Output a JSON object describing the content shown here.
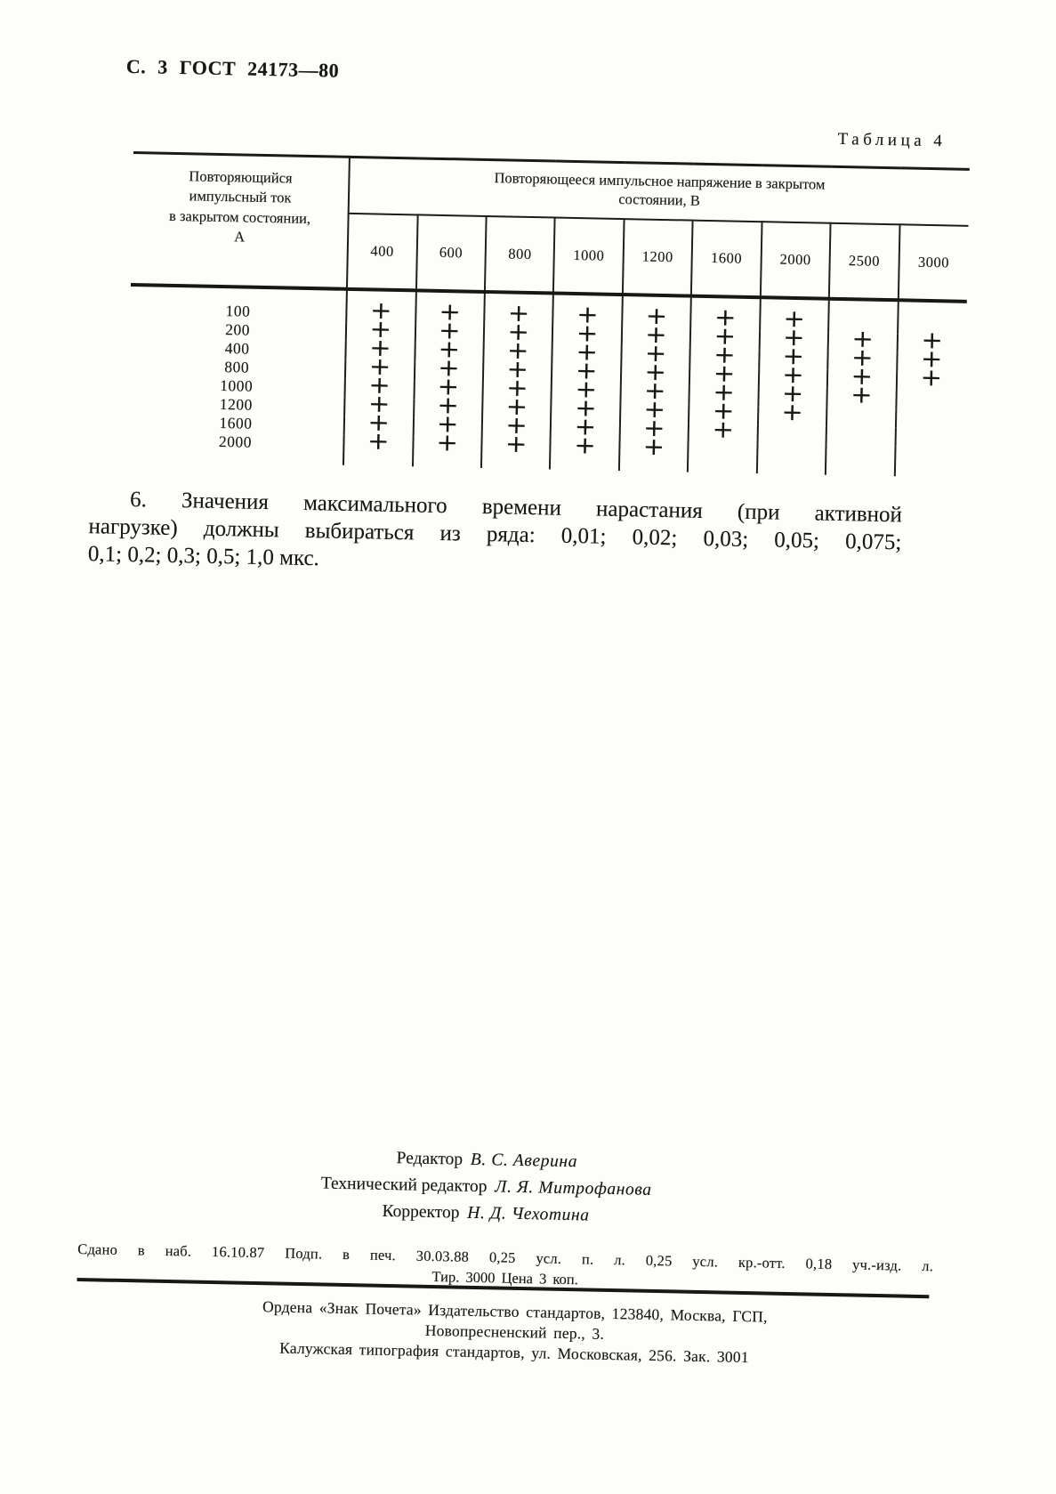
{
  "header": {
    "page_header": "С. 3 ГОСТ 24173—80"
  },
  "table": {
    "caption": "Таблица 4",
    "row_header_lines": [
      "Повторяющийся",
      "импульсный ток",
      "в закрытом состоянии,",
      "А"
    ],
    "col_header_lines": [
      "Повторяющееся импульсное напряжение в закрытом",
      "состоянии, В"
    ],
    "columns": [
      "400",
      "600",
      "800",
      "1000",
      "1200",
      "1600",
      "2000",
      "2500",
      "3000"
    ],
    "mark_symbol": "+",
    "rows": [
      {
        "label": "100",
        "marks": [
          1,
          1,
          1,
          1,
          1,
          1,
          1,
          0,
          0
        ]
      },
      {
        "label": "200",
        "marks": [
          1,
          1,
          1,
          1,
          1,
          1,
          1,
          1,
          1
        ]
      },
      {
        "label": "400",
        "marks": [
          1,
          1,
          1,
          1,
          1,
          1,
          1,
          1,
          1
        ]
      },
      {
        "label": "800",
        "marks": [
          1,
          1,
          1,
          1,
          1,
          1,
          1,
          1,
          1
        ]
      },
      {
        "label": "1000",
        "marks": [
          1,
          1,
          1,
          1,
          1,
          1,
          1,
          1,
          0
        ]
      },
      {
        "label": "1200",
        "marks": [
          1,
          1,
          1,
          1,
          1,
          1,
          1,
          0,
          0
        ]
      },
      {
        "label": "1600",
        "marks": [
          1,
          1,
          1,
          1,
          1,
          1,
          0,
          0,
          0
        ]
      },
      {
        "label": "2000",
        "marks": [
          1,
          1,
          1,
          1,
          1,
          0,
          0,
          0,
          0
        ]
      }
    ]
  },
  "paragraph": {
    "lines": [
      "6. Значения максимального времени нарастания (при активной",
      "нагрузке) должны выбираться из ряда: 0,01; 0,02; 0,03; 0,05; 0,075;",
      "0,1; 0,2; 0,3; 0,5; 1,0 мкс."
    ]
  },
  "credits": [
    {
      "role": "Редактор",
      "name": "В. С. Аверина"
    },
    {
      "role": "Технический редактор",
      "name": "Л. Я. Митрофанова"
    },
    {
      "role": "Корректор",
      "name": "Н. Д. Чехотина"
    }
  ],
  "imprint": {
    "line1": "Сдано в наб. 16.10.87 Подп. в печ. 30.03.88 0,25 усл. п. л. 0,25 усл. кр.-отт. 0,18 уч.-изд. л.",
    "line2": "Тир. 3000 Цена 3 коп."
  },
  "publisher": [
    "Ордена «Знак Почета» Издательство стандартов, 123840, Москва, ГСП,",
    "Новопресненский пер., 3.",
    "Калужская типография стандартов, ул. Московская, 256. Зак. 3001"
  ]
}
